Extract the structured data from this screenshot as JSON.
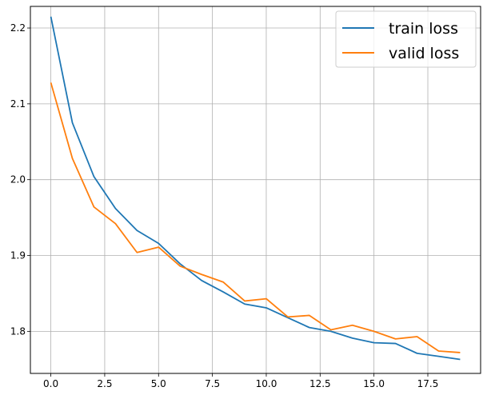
{
  "chart_data": {
    "type": "line",
    "title": "",
    "xlabel": "",
    "ylabel": "",
    "xlim": [
      -0.95,
      19.95
    ],
    "ylim": [
      1.7445,
      2.2285
    ],
    "grid": true,
    "legend_position": "top-right",
    "x_ticks": [
      0.0,
      2.5,
      5.0,
      7.5,
      10.0,
      12.5,
      15.0,
      17.5
    ],
    "x_tick_labels": [
      "0.0",
      "2.5",
      "5.0",
      "7.5",
      "10.0",
      "12.5",
      "15.0",
      "17.5"
    ],
    "y_ticks": [
      1.8,
      1.9,
      2.0,
      2.1,
      2.2
    ],
    "y_tick_labels": [
      "1.8",
      "1.9",
      "2.0",
      "2.1",
      "2.2"
    ],
    "x": [
      0,
      1,
      2,
      3,
      4,
      5,
      6,
      7,
      8,
      9,
      10,
      11,
      12,
      13,
      14,
      15,
      16,
      17,
      18,
      19
    ],
    "series": [
      {
        "name": "train loss",
        "color": "#1f77b4",
        "values": [
          2.215,
          2.075,
          2.004,
          1.962,
          1.933,
          1.916,
          1.889,
          1.867,
          1.852,
          1.836,
          1.831,
          1.818,
          1.805,
          1.8,
          1.791,
          1.785,
          1.784,
          1.771,
          1.767,
          1.763
        ]
      },
      {
        "name": "valid loss",
        "color": "#ff7f0e",
        "values": [
          2.128,
          2.028,
          1.964,
          1.942,
          1.904,
          1.911,
          1.886,
          1.875,
          1.865,
          1.84,
          1.843,
          1.819,
          1.821,
          1.802,
          1.808,
          1.8,
          1.79,
          1.793,
          1.774,
          1.772
        ]
      }
    ]
  }
}
